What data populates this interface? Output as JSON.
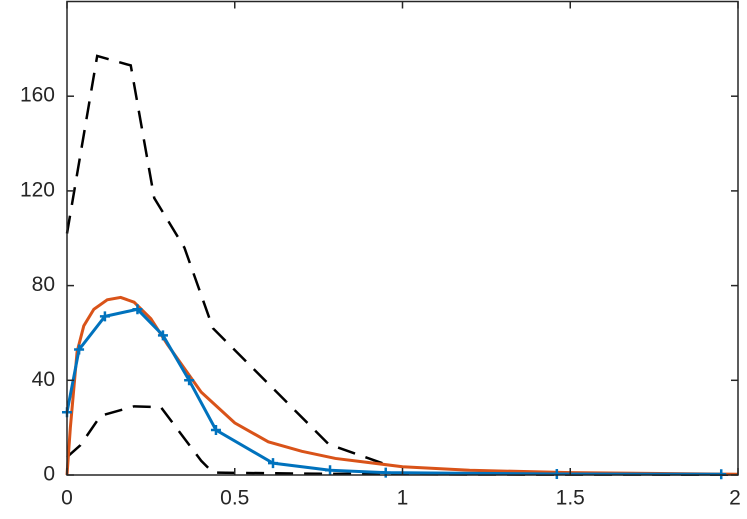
{
  "chart_data": {
    "type": "line",
    "xlim": [
      0,
      2
    ],
    "xticks": [
      0,
      0.5,
      1,
      1.5,
      2
    ],
    "ylim": [
      0,
      200
    ],
    "yticks": [
      0,
      40,
      80,
      120,
      160
    ],
    "grid": false,
    "series": [
      {
        "color": "#000000",
        "dash": true,
        "x": [
          0,
          0.09,
          0.19,
          0.26,
          0.35,
          0.435,
          0.78,
          0.96
        ],
        "values": [
          102,
          177,
          173,
          117,
          96,
          62,
          13,
          4
        ]
      },
      {
        "color": "#000000",
        "dash": true,
        "x": [
          0,
          0.04,
          0.1,
          0.2,
          0.28,
          0.4,
          0.435,
          0.78,
          1.2,
          2
        ],
        "values": [
          7.6,
          12.6,
          25,
          29,
          28.6,
          6,
          1,
          0.5,
          0.2,
          0.1
        ]
      },
      {
        "color": "#d95319",
        "x": [
          0,
          0.01,
          0.03,
          0.05,
          0.08,
          0.12,
          0.16,
          0.2,
          0.25,
          0.3,
          0.35,
          0.4,
          0.5,
          0.6,
          0.7,
          0.8,
          1.0,
          1.2,
          1.5,
          2
        ],
        "values": [
          0,
          20,
          52,
          63,
          70,
          74,
          75,
          73,
          66,
          55,
          45,
          35,
          22,
          14,
          10,
          7,
          3.5,
          2,
          1,
          0.3
        ]
      },
      {
        "color": "#0072bd",
        "marker": "+",
        "x": [
          0,
          0.036,
          0.113,
          0.21,
          0.286,
          0.364,
          0.444,
          0.614,
          0.784,
          0.95,
          1.46,
          1.95
        ],
        "values": [
          26.5,
          53,
          67,
          70,
          59,
          40,
          19,
          5,
          2,
          1,
          0.4,
          0.3
        ]
      }
    ]
  }
}
